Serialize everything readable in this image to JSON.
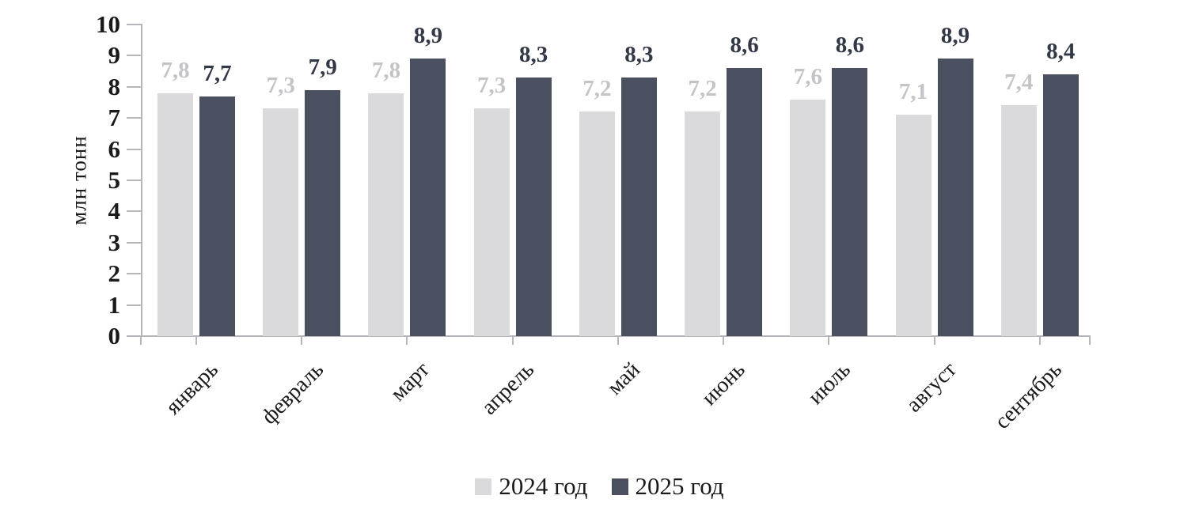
{
  "chart_data": {
    "type": "bar",
    "title": "",
    "ylabel": "млн тонн",
    "xlabel": "",
    "ylim": [
      0,
      10
    ],
    "ytick_step": 1,
    "grid": false,
    "legend_position": "bottom",
    "value_label_decimal": "comma",
    "categories": [
      "январь",
      "февраль",
      "март",
      "апрель",
      "май",
      "июнь",
      "июль",
      "август",
      "сентябрь"
    ],
    "series": [
      {
        "name": "2024 год",
        "color": "#dadadc",
        "label_color": "#c4c4c8",
        "values": [
          7.8,
          7.3,
          7.8,
          7.3,
          7.2,
          7.2,
          7.6,
          7.1,
          7.4
        ]
      },
      {
        "name": "2025 год",
        "color": "#4a5060",
        "label_color": "#323845",
        "values": [
          7.7,
          7.9,
          8.9,
          8.3,
          8.3,
          8.6,
          8.6,
          8.9,
          8.4
        ]
      }
    ]
  },
  "colors": {
    "axis": "#b7b7bb",
    "tick_text": "#1a1a1a"
  }
}
